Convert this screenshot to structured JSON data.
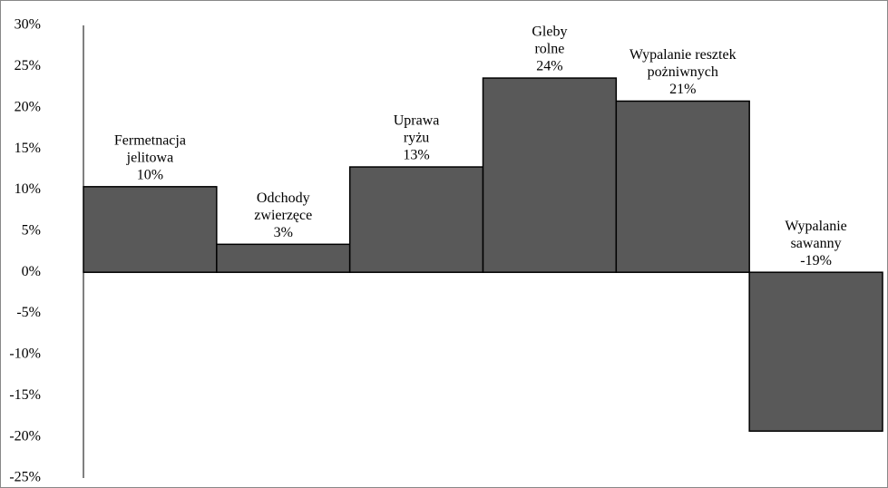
{
  "chart_data": {
    "type": "bar",
    "categories": [
      [
        "Fermetnacja",
        "jelitowa"
      ],
      [
        "Odchody",
        "zwierzęce"
      ],
      [
        "Uprawa",
        "ryżu"
      ],
      [
        "Gleby",
        "rolne"
      ],
      [
        "Wypalanie resztek",
        "pożniwnych"
      ],
      [
        "Wypalanie",
        "sawanny"
      ]
    ],
    "values": [
      10.4,
      3.4,
      12.8,
      23.6,
      20.8,
      -19.3
    ],
    "value_labels": [
      "10%",
      "3%",
      "13%",
      "24%",
      "21%",
      "-19%"
    ],
    "color": "#595959",
    "ylim": [
      -25,
      30
    ],
    "yticks": [
      {
        "value": 30,
        "label": "30%"
      },
      {
        "value": 25,
        "label": "25%"
      },
      {
        "value": 20,
        "label": "20%"
      },
      {
        "value": 15,
        "label": "15%"
      },
      {
        "value": 10,
        "label": "10%"
      },
      {
        "value": 5,
        "label": "5%"
      },
      {
        "value": 0,
        "label": "0%"
      },
      {
        "value": -5,
        "label": "-5%"
      },
      {
        "value": -10,
        "label": "-10%"
      },
      {
        "value": -15,
        "label": "-15%"
      },
      {
        "value": -20,
        "label": "-20%"
      },
      {
        "value": -25,
        "label": "-25%"
      }
    ],
    "grid": false
  }
}
